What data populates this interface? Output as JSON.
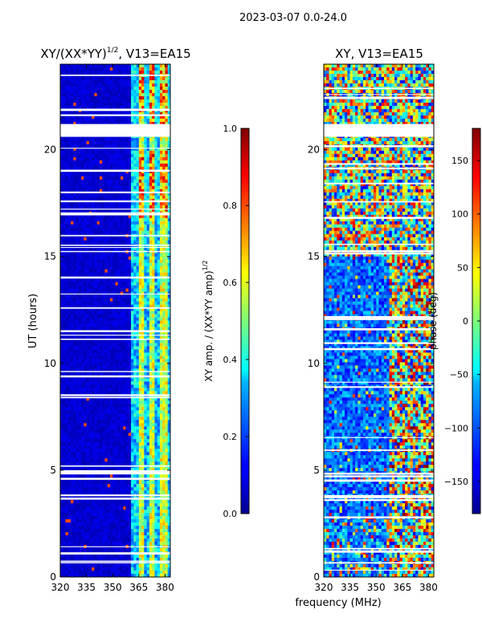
{
  "suptitle": "2023-03-07 0.0-24.0",
  "colors": {
    "background": "#ffffff",
    "axis": "#000000",
    "gap": "#ffffff"
  },
  "chart_data": [
    {
      "type": "heatmap",
      "title": "XY/(XX*YY)^1/2, V13=EA15",
      "title_main": "XY/(XX*YY)",
      "title_sup": "1/2",
      "title_tail": ", V13=EA15",
      "xlabel": "frequency (MHz)",
      "ylabel": "UT (hours)",
      "xlim": [
        320,
        383
      ],
      "ylim": [
        0,
        24
      ],
      "xticks": [
        320,
        335,
        350,
        365,
        380
      ],
      "yticks": [
        0,
        5,
        10,
        15,
        20
      ],
      "colormap": "jet",
      "colorbar": {
        "label": "XY amp. / (XX*YY amp)^1/2",
        "label_main": "XY amp. / (XX*YY amp)",
        "label_sup": "1/2",
        "range": [
          0.0,
          1.0
        ],
        "ticks": [
          "0.0",
          "0.2",
          "0.4",
          "0.6",
          "0.8",
          "1.0"
        ]
      },
      "gap_bands_hours": [
        [
          20.6,
          21.2
        ],
        [
          4.8,
          5.0
        ]
      ],
      "description": "low amplitude (~0.05) below 360 MHz; bright bands 0.4-0.9 between 361-380 MHz"
    },
    {
      "type": "heatmap",
      "title": "XY, V13=EA15",
      "xlabel": "frequency (MHz)",
      "ylabel": "",
      "xlim": [
        320,
        383
      ],
      "ylim": [
        0,
        24
      ],
      "xticks": [
        320,
        335,
        350,
        365,
        380
      ],
      "yticks": [
        0,
        5,
        10,
        15,
        20
      ],
      "colormap": "jet",
      "colorbar": {
        "label": "phase (deg)",
        "range": [
          -180,
          180
        ],
        "ticks": [
          "−150",
          "−100",
          "−50",
          "0",
          "50",
          "100",
          "150"
        ]
      },
      "gap_bands_hours": [
        [
          20.6,
          21.2
        ]
      ],
      "description": "phase mostly near -120 deg at low UT, mixed phases above 15 h, structured fringes 358-383 MHz"
    }
  ]
}
